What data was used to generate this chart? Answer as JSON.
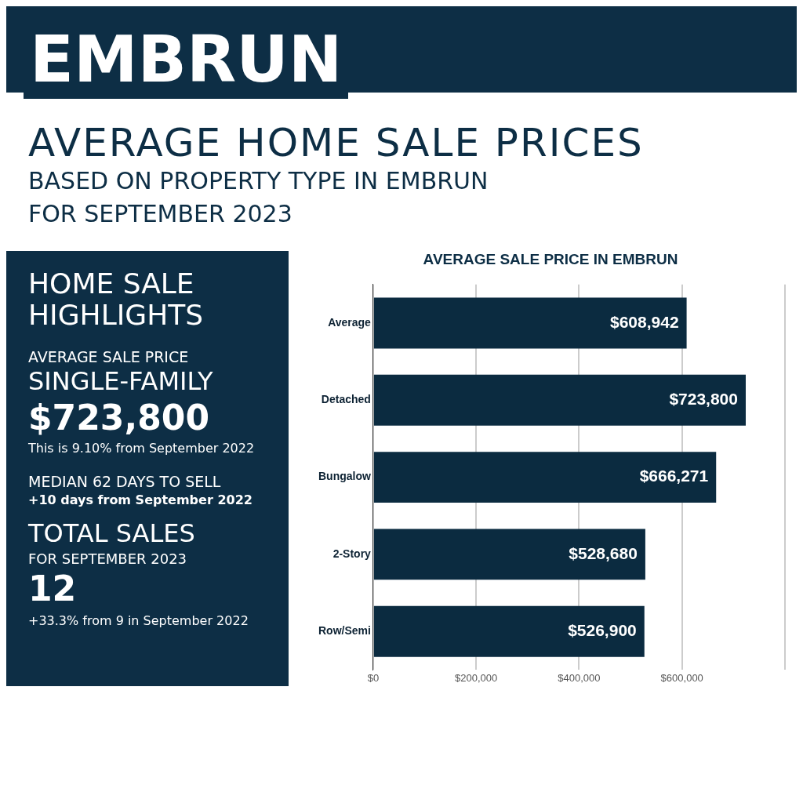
{
  "chart_data": [
    {
      "type": "other",
      "title": "EMBRUN",
      "subtitle": "AVERAGE HOME SALE PRICES",
      "annotations": [
        "BASED ON PROPERTY TYPE IN EMBRUN",
        "FOR SEPTEMBER 2023"
      ]
    },
    {
      "type": "other",
      "title": "HOME SALE HIGHLIGHTS",
      "annotations": [
        "AVERAGE SALE PRICE",
        "SINGLE-FAMILY",
        "$723,800",
        "This is 9.10% from September 2022",
        "MEDIAN 62 DAYS TO SELL",
        "+10 days from September 2022",
        "TOTAL SALES",
        "FOR SEPTEMBER 2023",
        "12",
        "+33.3% from 9 in September 2022"
      ]
    },
    {
      "type": "bar",
      "orientation": "horizontal",
      "title": "AVERAGE SALE PRICE IN EMBRUN",
      "categories": [
        "Average",
        "Detached",
        "Bungalow",
        "2-Story",
        "Row/Semi"
      ],
      "values": [
        608942,
        723800,
        666271,
        528680,
        526900
      ],
      "color": "#0b2b40",
      "data_labels": true,
      "value_labels": [
        "$608,942",
        "$723,800",
        "$666,271",
        "$528,680",
        "$526,900"
      ],
      "xlim": [
        0,
        800000
      ],
      "xticks": [
        {
          "value": 0,
          "label": "$0"
        },
        {
          "value": 200000,
          "label": "$200,000"
        },
        {
          "value": 400000,
          "label": "$400,000"
        },
        {
          "value": 600000,
          "label": "$600,000"
        },
        {
          "value": 800000,
          "label": null
        }
      ],
      "grid": "x",
      "legend": false
    }
  ]
}
